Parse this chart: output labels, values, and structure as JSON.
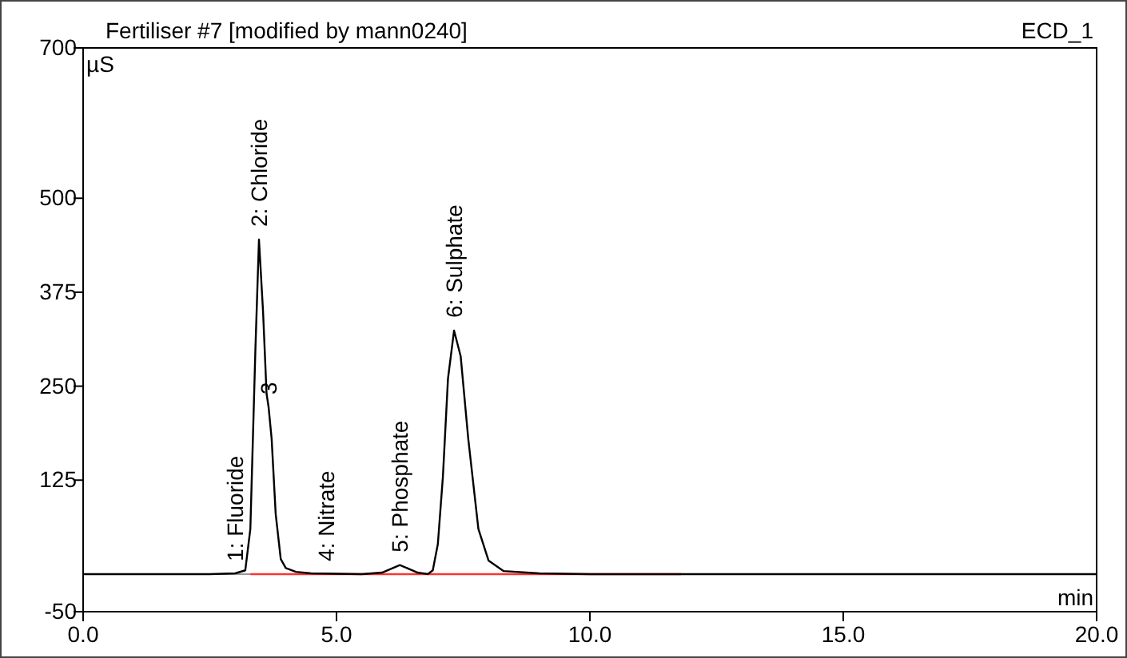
{
  "chart_data": {
    "type": "line",
    "title": "Fertiliser #7 [modified by mann0240]",
    "xlabel": "min",
    "ylabel": "µS",
    "annotations": [
      "ECD_1",
      {
        "text": "1:  Fluoride",
        "x": 3.0,
        "y": 0
      },
      {
        "text": "2:  Chloride",
        "x": 3.47,
        "y": 445
      },
      {
        "text": "3",
        "x": 3.66,
        "y": 222
      },
      {
        "text": "4:  Nitrate",
        "x": 4.8,
        "y": 0
      },
      {
        "text": "5:  Phosphate",
        "x": 6.25,
        "y": 12
      },
      {
        "text": "6:  Sulphate",
        "x": 7.32,
        "y": 324
      }
    ],
    "series": [
      {
        "color": "#000000",
        "x": [
          0,
          2.5,
          3.0,
          3.2,
          3.3,
          3.4,
          3.47,
          3.55,
          3.62,
          3.66,
          3.72,
          3.8,
          3.9,
          4.0,
          4.2,
          4.5,
          5.5,
          5.9,
          6.25,
          6.6,
          6.8,
          6.9,
          7.0,
          7.1,
          7.2,
          7.32,
          7.45,
          7.6,
          7.8,
          8.0,
          8.3,
          9,
          10,
          20
        ],
        "values": [
          0,
          0,
          1,
          5,
          60,
          300,
          445,
          350,
          240,
          222,
          180,
          80,
          20,
          8,
          3,
          1,
          0,
          2,
          12,
          2,
          0,
          5,
          40,
          130,
          260,
          324,
          290,
          180,
          60,
          18,
          4,
          1,
          0,
          0
        ]
      },
      {
        "color": "#ff3333",
        "x": [
          3.3,
          11.8
        ],
        "values": [
          0,
          0
        ]
      }
    ],
    "xlim": [
      0,
      20
    ],
    "ylim": [
      -50,
      700
    ],
    "xticks": [
      {
        "value": 0,
        "label": "0.0"
      },
      {
        "value": 5,
        "label": "5.0"
      },
      {
        "value": 10,
        "label": "10.0"
      },
      {
        "value": 15,
        "label": "15.0"
      },
      {
        "value": 20,
        "label": "20.0"
      }
    ],
    "yticks": [
      -50,
      125,
      250,
      375,
      500,
      700
    ],
    "grid": false,
    "marker": "none",
    "line_style": "solid"
  }
}
